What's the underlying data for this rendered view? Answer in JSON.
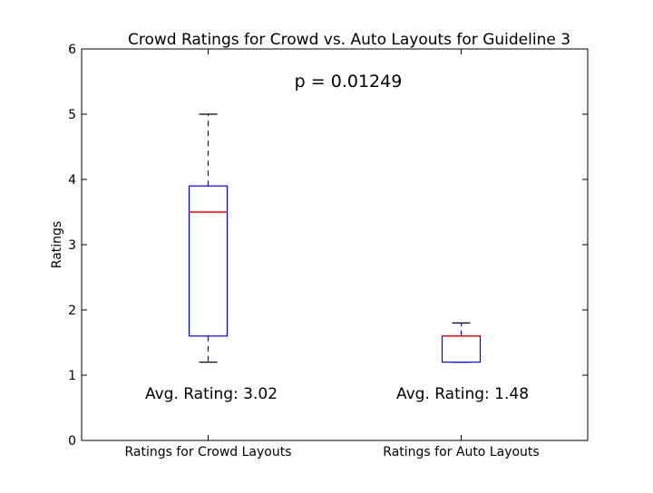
{
  "chart_data": {
    "type": "box",
    "title": "Crowd Ratings for Crowd vs. Auto Layouts for Guideline 3",
    "xlabel": "",
    "ylabel": "Ratings",
    "ylim": [
      0,
      6
    ],
    "yticks": [
      "0",
      "1",
      "2",
      "3",
      "4",
      "5",
      "6"
    ],
    "grid": false,
    "categories": [
      "Ratings for Crowd Layouts",
      "Ratings for Auto Layouts"
    ],
    "boxes": [
      {
        "whisker_low": 1.2,
        "q1": 1.6,
        "median": 3.5,
        "q3": 3.9,
        "whisker_high": 5.0
      },
      {
        "whisker_low": 1.2,
        "q1": 1.2,
        "median": 1.6,
        "q3": 1.6,
        "whisker_high": 1.8
      }
    ],
    "annotations": {
      "p_value": "p = 0.01249",
      "avg_labels": [
        "Avg. Rating: 3.02",
        "Avg. Rating: 1.48"
      ]
    },
    "colors": {
      "box": "#0000ff",
      "median": "#ff0000",
      "cap": "#000000",
      "axes": "#000000"
    }
  }
}
